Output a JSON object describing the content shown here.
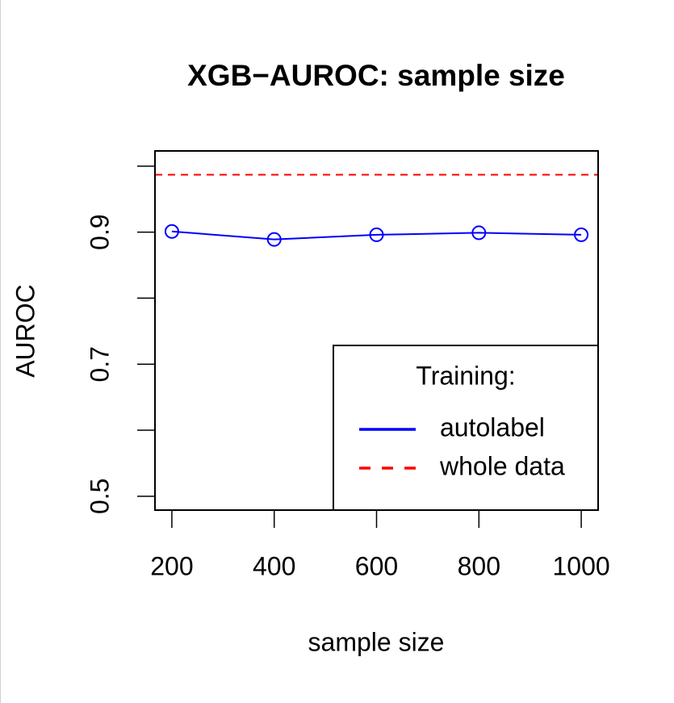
{
  "chart_data": {
    "type": "line",
    "title": "XGB−AUROC: sample size",
    "x_label": "sample size",
    "y_label": "AUROC",
    "x": [
      200,
      400,
      600,
      800,
      1000
    ],
    "series": [
      {
        "name": "autolabel",
        "color": "#0000ff",
        "marker": "circle",
        "values": [
          0.901,
          0.889,
          0.896,
          0.899,
          0.896
        ]
      }
    ],
    "hlines": [
      {
        "name": "whole data",
        "color": "#ff0000",
        "style": "dashed",
        "value": 0.987
      }
    ],
    "xlim": [
      167,
      1033
    ],
    "ylim": [
      0.479,
      1.023
    ],
    "xticks": [
      200,
      400,
      600,
      800,
      1000
    ],
    "yticks": [
      0.5,
      0.7,
      0.9
    ],
    "yminor_ticks": [
      0.6,
      0.8,
      1.0
    ],
    "legend": {
      "title": "Training:",
      "position": "bottom-right"
    }
  }
}
